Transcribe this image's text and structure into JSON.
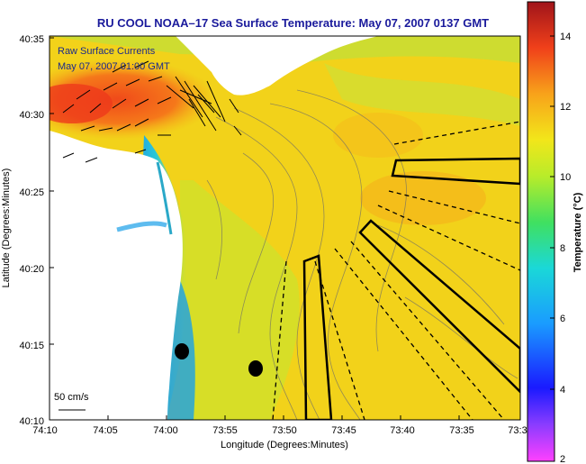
{
  "title": "RU COOL  NOAA–17  Sea Surface Temperature:  May 07, 2007 0137 GMT",
  "map": {
    "xlabel": "Longitude (Degrees:Minutes)",
    "ylabel": "Latitude (Degrees:Minutes)",
    "x_ticks": [
      "74:10",
      "74:05",
      "74:00",
      "73:55",
      "73:50",
      "73:45",
      "73:40",
      "73:35",
      "73:3"
    ],
    "y_ticks": [
      "40:35",
      "40:30",
      "40:25",
      "40:20",
      "40:15",
      "40:10"
    ],
    "legend_line1": "Raw Surface Currents",
    "legend_line2": "May 07, 2007 01:00 GMT",
    "scale_label": "50 cm/s",
    "colors": {
      "land": "#ffffff",
      "ocean_warm": "#f2d21a",
      "ocean_mid": "#b7e23a",
      "coast_cold": "#1aa0e8",
      "hot": "#f04a1a",
      "title": "#1a1a9c"
    }
  },
  "colorbar": {
    "label": "Temperature (°C)",
    "ticks": [
      "14",
      "12",
      "10",
      "8",
      "6",
      "4",
      "2"
    ],
    "range": [
      2,
      15
    ]
  }
}
